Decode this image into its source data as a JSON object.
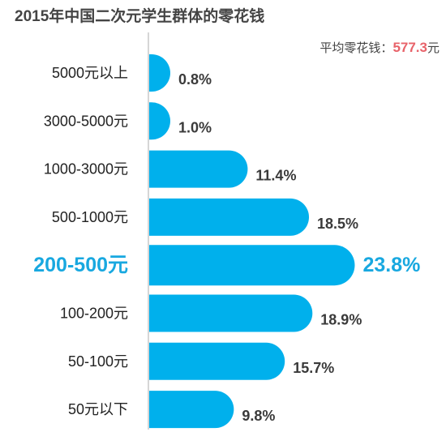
{
  "chart_data": {
    "type": "bar",
    "orientation": "horizontal",
    "title": "2015年中国二次元学生群体的零花钱",
    "annotation": {
      "label": "平均零花钱：",
      "value": "577.3",
      "unit": "元"
    },
    "categories": [
      "5000元以上",
      "3000-5000元",
      "1000-3000元",
      "500-1000元",
      "200-500元",
      "100-200元",
      "50-100元",
      "50元以下"
    ],
    "values": [
      0.8,
      1.0,
      11.4,
      18.5,
      23.8,
      18.9,
      15.7,
      9.8
    ],
    "value_labels": [
      "0.8%",
      "1.0%",
      "11.4%",
      "18.5%",
      "23.8%",
      "18.9%",
      "15.7%",
      "9.8%"
    ],
    "highlight": "200-500元",
    "grid": false,
    "legend": "none",
    "colors": {
      "bar": "#00b0ec",
      "highlight_text": "#18a8e0",
      "axis": "#c8c8c8",
      "avg_value": "#e8636a"
    }
  }
}
